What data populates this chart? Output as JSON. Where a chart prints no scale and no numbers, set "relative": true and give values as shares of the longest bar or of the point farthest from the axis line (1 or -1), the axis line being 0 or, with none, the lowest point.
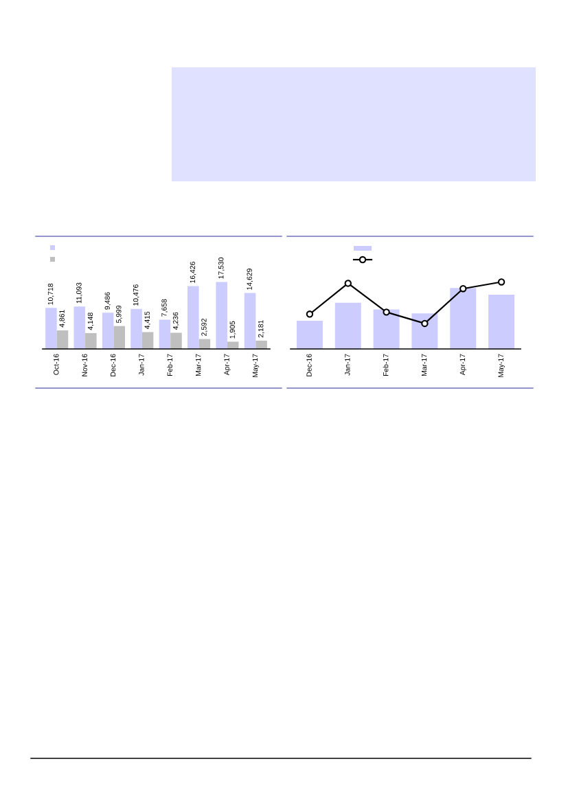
{
  "chart_data": [
    {
      "type": "bar",
      "categories": [
        "Oct-16",
        "Nov-16",
        "Dec-16",
        "Jan-17",
        "Feb-17",
        "Mar-17",
        "Apr-17",
        "May-17"
      ],
      "series": [
        {
          "color": "#ccccff",
          "values": [
            10718,
            11093,
            9486,
            10476,
            7658,
            16426,
            17530,
            14629
          ],
          "value_labels": [
            "10,718",
            "11,093",
            "9,486",
            "10,476",
            "7,658",
            "16,426",
            "17,530",
            "14,629"
          ]
        },
        {
          "color": "#bfbfbf",
          "values": [
            4861,
            4148,
            5999,
            4415,
            4236,
            2592,
            1905,
            2181
          ],
          "value_labels": [
            "4,861",
            "4,148",
            "5,999",
            "4,415",
            "4,236",
            "2,592",
            "1,905",
            "2,181"
          ]
        }
      ],
      "tick_labels": "x"
    },
    {
      "type": "bar",
      "relative": true,
      "categories": [
        "Dec-16",
        "Jan-17",
        "Feb-17",
        "Mar-17",
        "Apr-17",
        "May-17"
      ],
      "series": [
        {
          "color": "#ccccff",
          "values": [
            0.42,
            0.69,
            0.59,
            0.53,
            0.91,
            0.81
          ]
        },
        {
          "type": "line",
          "color": "#000000",
          "values": [
            0.52,
            0.98,
            0.55,
            0.38,
            0.9,
            1
          ]
        }
      ],
      "marker": "circle"
    }
  ]
}
